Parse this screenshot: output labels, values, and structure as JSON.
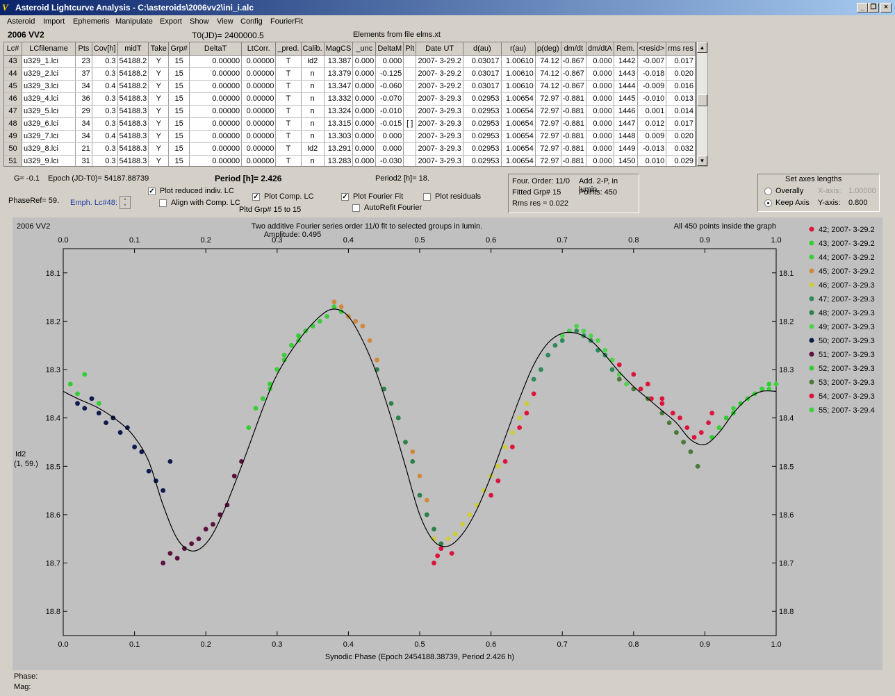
{
  "window": {
    "title": "Asteroid Lightcurve Analysis - C:\\asteroids\\2006vv2\\ini_i.alc",
    "buttons": [
      "_",
      "❐",
      "×"
    ]
  },
  "menu": [
    "Asteroid",
    "Import",
    "Ephemeris",
    "Manipulate",
    "Export",
    "Show",
    "View",
    "Config",
    "FourierFit"
  ],
  "header": {
    "asteroid_name": "2006 VV2",
    "t0": "T0(JD)= 2400000.5",
    "elements": "Elements from file elms.xt"
  },
  "table": {
    "columns": [
      "Lc#",
      "LCfilename",
      "Pts",
      "Cov[h]",
      "midT",
      "Take",
      "Grp#",
      "DeltaT",
      "LtCorr.",
      "_pred.",
      "Calib.",
      "MagCS",
      "_unc",
      "DeltaM",
      "Plt",
      "Date UT",
      "d(au)",
      "r(au)",
      "p(deg)",
      "dm/dt",
      "dm/dtA",
      "Rem.",
      "<resid>",
      "rms res"
    ],
    "rows": [
      [
        "43",
        "u329_1.lci",
        "23",
        "0.3",
        "54188.2",
        "Y",
        "15",
        "0.00000",
        "0.00000",
        "T",
        "Id2",
        "13.387",
        "0.000",
        "0.000",
        "",
        "2007- 3-29.2",
        "0.03017",
        "1.00610",
        "74.12",
        "-0.867",
        "0.000",
        "1442",
        "-0.007",
        "0.017"
      ],
      [
        "44",
        "u329_2.lci",
        "37",
        "0.3",
        "54188.2",
        "Y",
        "15",
        "0.00000",
        "0.00000",
        "T",
        "n",
        "13.379",
        "0.000",
        "-0.125",
        "",
        "2007- 3-29.2",
        "0.03017",
        "1.00610",
        "74.12",
        "-0.867",
        "0.000",
        "1443",
        "-0.018",
        "0.020"
      ],
      [
        "45",
        "u329_3.lci",
        "34",
        "0.4",
        "54188.2",
        "Y",
        "15",
        "0.00000",
        "0.00000",
        "T",
        "n",
        "13.347",
        "0.000",
        "-0.060",
        "",
        "2007- 3-29.2",
        "0.03017",
        "1.00610",
        "74.12",
        "-0.867",
        "0.000",
        "1444",
        "-0.009",
        "0.016"
      ],
      [
        "46",
        "u329_4.lci",
        "36",
        "0.3",
        "54188.3",
        "Y",
        "15",
        "0.00000",
        "0.00000",
        "T",
        "n",
        "13.332",
        "0.000",
        "-0.070",
        "",
        "2007- 3-29.3",
        "0.02953",
        "1.00654",
        "72.97",
        "-0.881",
        "0.000",
        "1445",
        "-0.010",
        "0.013"
      ],
      [
        "47",
        "u329_5.lci",
        "29",
        "0.3",
        "54188.3",
        "Y",
        "15",
        "0.00000",
        "0.00000",
        "T",
        "n",
        "13.324",
        "0.000",
        "-0.010",
        "",
        "2007- 3-29.3",
        "0.02953",
        "1.00654",
        "72.97",
        "-0.881",
        "0.000",
        "1446",
        "0.001",
        "0.014"
      ],
      [
        "48",
        "u329_6.lci",
        "34",
        "0.3",
        "54188.3",
        "Y",
        "15",
        "0.00000",
        "0.00000",
        "T",
        "n",
        "13.315",
        "0.000",
        "-0.015",
        "[ ]",
        "2007- 3-29.3",
        "0.02953",
        "1.00654",
        "72.97",
        "-0.881",
        "0.000",
        "1447",
        "0.012",
        "0.017"
      ],
      [
        "49",
        "u329_7.lci",
        "34",
        "0.4",
        "54188.3",
        "Y",
        "15",
        "0.00000",
        "0.00000",
        "T",
        "n",
        "13.303",
        "0.000",
        "0.000",
        "",
        "2007- 3-29.3",
        "0.02953",
        "1.00654",
        "72.97",
        "-0.881",
        "0.000",
        "1448",
        "0.009",
        "0.020"
      ],
      [
        "50",
        "u329_8.lci",
        "21",
        "0.3",
        "54188.3",
        "Y",
        "15",
        "0.00000",
        "0.00000",
        "T",
        "Id2",
        "13.291",
        "0.000",
        "0.000",
        "",
        "2007- 3-29.3",
        "0.02953",
        "1.00654",
        "72.97",
        "-0.881",
        "0.000",
        "1449",
        "-0.013",
        "0.032"
      ],
      [
        "51",
        "u329_9.lci",
        "31",
        "0.3",
        "54188.3",
        "Y",
        "15",
        "0.00000",
        "0.00000",
        "T",
        "n",
        "13.283",
        "0.000",
        "-0.030",
        "",
        "2007- 3-29.3",
        "0.02953",
        "1.00654",
        "72.97",
        "-0.881",
        "0.000",
        "1450",
        "0.010",
        "0.029"
      ]
    ]
  },
  "controls": {
    "g_value": "G= -0.1",
    "epoch": "Epoch (JD-T0)= 54187.88739",
    "period": "Period [h]= 2.426",
    "period2": "Period2 [h]= 18.",
    "phaseref": "PhaseRef= 59.",
    "emph": "Emph. Lc#48:",
    "plot_reduced": "Plot reduced indiv. LC",
    "align_comp": "Align with Comp. LC",
    "plot_comp": "Plot Comp. LC",
    "pltd_grp": "Pltd Grp#  15 to   15",
    "plot_fourier": "Plot Fourier Fit",
    "autorefit": "AutoRefit Fourier",
    "plot_residuals": "Plot residuals"
  },
  "fourier_info": {
    "order": "Four. Order: 11/0",
    "add": "Add. 2-P, in lumin.",
    "fitted": "Fitted Grp# 15",
    "points": "Points: 450",
    "rms": "Rms res     = 0.022"
  },
  "axes_box": {
    "title": "Set axes lengths",
    "overally": "Overally",
    "keep_axis": "Keep Axis",
    "x_axis_label": "X-axis:",
    "x_axis_value": "1.00000",
    "y_axis_label": "Y-axis:",
    "y_axis_value": "0.800"
  },
  "chart_data": {
    "type": "scatter",
    "title": "Two additive Fourier series order 11/0 fit to selected groups in lumin.",
    "subtitle": "Amplitude: 0.495",
    "object_label": "2006 VV2",
    "points_note": "All 450 points inside the graph",
    "xlabel": "Synodic Phase (Epoch 2454188.38739, Period 2.426 h)",
    "ylabel": "Id2",
    "ylabel2": "(1, 59.)",
    "xlim": [
      0,
      1
    ],
    "ylim": [
      18.05,
      18.85
    ],
    "y_inverted": true,
    "xticks": [
      "0.0",
      "0.1",
      "0.2",
      "0.3",
      "0.4",
      "0.5",
      "0.6",
      "0.7",
      "0.8",
      "0.9",
      "1.0"
    ],
    "yticks": [
      "18.1",
      "18.2",
      "18.3",
      "18.4",
      "18.5",
      "18.6",
      "18.7",
      "18.8"
    ],
    "fit_curve": {
      "x": [
        0.0,
        0.02,
        0.05,
        0.08,
        0.1,
        0.12,
        0.14,
        0.16,
        0.18,
        0.2,
        0.22,
        0.25,
        0.28,
        0.3,
        0.33,
        0.36,
        0.38,
        0.4,
        0.42,
        0.44,
        0.46,
        0.48,
        0.5,
        0.52,
        0.54,
        0.56,
        0.58,
        0.6,
        0.62,
        0.64,
        0.66,
        0.68,
        0.7,
        0.72,
        0.74,
        0.76,
        0.78,
        0.8,
        0.82,
        0.84,
        0.86,
        0.88,
        0.9,
        0.92,
        0.94,
        0.96,
        0.98,
        1.0
      ],
      "y": [
        18.345,
        18.36,
        18.38,
        18.41,
        18.44,
        18.49,
        18.58,
        18.65,
        18.675,
        18.66,
        18.61,
        18.5,
        18.38,
        18.31,
        18.24,
        18.19,
        18.175,
        18.19,
        18.24,
        18.31,
        18.4,
        18.5,
        18.6,
        18.655,
        18.665,
        18.64,
        18.59,
        18.52,
        18.44,
        18.36,
        18.29,
        18.245,
        18.225,
        18.225,
        18.24,
        18.27,
        18.305,
        18.335,
        18.36,
        18.385,
        18.41,
        18.445,
        18.455,
        18.43,
        18.39,
        18.36,
        18.345,
        18.345
      ]
    },
    "series": [
      {
        "name": "42; 2007- 3-29.2",
        "color": "#dc143c",
        "x": [
          0.81,
          0.825,
          0.84,
          0.855,
          0.865,
          0.875,
          0.885,
          0.895,
          0.905,
          0.91,
          0.52,
          0.525,
          0.53,
          0.545
        ],
        "y": [
          18.34,
          18.36,
          18.37,
          18.39,
          18.4,
          18.42,
          18.44,
          18.43,
          18.41,
          18.39,
          18.7,
          18.685,
          18.67,
          18.68
        ]
      },
      {
        "name": "43; 2007- 3-29.2",
        "color": "#32cd32",
        "x": [
          0.01,
          0.02,
          0.03,
          0.05,
          0.26,
          0.27,
          0.28,
          0.29,
          0.3,
          0.31,
          0.32,
          0.33,
          0.34,
          0.35
        ],
        "y": [
          18.33,
          18.35,
          18.31,
          18.37,
          18.42,
          18.38,
          18.36,
          18.33,
          18.3,
          18.28,
          18.25,
          18.23,
          18.22,
          18.21
        ]
      },
      {
        "name": "44; 2007- 3-29.2",
        "color": "#3ccc3c",
        "x": [
          0.3,
          0.31,
          0.32,
          0.33,
          0.34,
          0.35,
          0.36,
          0.37,
          0.38,
          0.39,
          0.4,
          0.28,
          0.29,
          0.27
        ],
        "y": [
          18.3,
          18.27,
          18.25,
          18.24,
          18.22,
          18.21,
          18.2,
          18.19,
          18.17,
          18.18,
          18.19,
          18.36,
          18.34,
          18.38
        ]
      },
      {
        "name": "45; 2007- 3-29.2",
        "color": "#d2883c",
        "x": [
          0.38,
          0.39,
          0.4,
          0.41,
          0.42,
          0.43,
          0.44,
          0.49,
          0.5,
          0.51,
          0.52
        ],
        "y": [
          18.16,
          18.17,
          18.19,
          18.2,
          18.21,
          18.24,
          18.28,
          18.47,
          18.52,
          18.57,
          18.65
        ]
      },
      {
        "name": "46; 2007- 3-29.3",
        "color": "#cccc3c",
        "x": [
          0.52,
          0.53,
          0.54,
          0.55,
          0.56,
          0.57,
          0.58,
          0.59,
          0.6,
          0.61,
          0.62,
          0.63,
          0.64,
          0.65
        ],
        "y": [
          18.65,
          18.66,
          18.65,
          18.64,
          18.62,
          18.6,
          18.58,
          18.55,
          18.52,
          18.5,
          18.46,
          18.43,
          18.4,
          18.37
        ]
      },
      {
        "name": "47; 2007- 3-29.3",
        "color": "#2e8b57",
        "x": [
          0.66,
          0.67,
          0.68,
          0.69,
          0.7,
          0.71,
          0.72,
          0.73,
          0.74,
          0.75,
          0.76,
          0.77
        ],
        "y": [
          18.32,
          18.3,
          18.27,
          18.25,
          18.24,
          18.22,
          18.22,
          18.23,
          18.24,
          18.26,
          18.27,
          18.3
        ]
      },
      {
        "name": "48; 2007- 3-29.3",
        "color": "#2d8048",
        "x": [
          0.44,
          0.45,
          0.46,
          0.47,
          0.48,
          0.49,
          0.5,
          0.51,
          0.52,
          0.53
        ],
        "y": [
          18.3,
          18.34,
          18.37,
          18.4,
          18.45,
          18.49,
          18.56,
          18.6,
          18.63,
          18.66
        ]
      },
      {
        "name": "49; 2007- 3-29.3",
        "color": "#50d250",
        "x": [
          0.7,
          0.71,
          0.72,
          0.73,
          0.74,
          0.75,
          0.76,
          0.77,
          0.78,
          0.79
        ],
        "y": [
          18.23,
          18.22,
          18.21,
          18.22,
          18.23,
          18.24,
          18.26,
          18.28,
          18.31,
          18.33
        ]
      },
      {
        "name": "50; 2007- 3-29.3",
        "color": "#0d1a4d",
        "x": [
          0.02,
          0.03,
          0.04,
          0.05,
          0.06,
          0.07,
          0.08,
          0.09,
          0.1,
          0.11,
          0.12,
          0.13,
          0.14,
          0.15
        ],
        "y": [
          18.37,
          18.38,
          18.36,
          18.39,
          18.41,
          18.4,
          18.43,
          18.42,
          18.46,
          18.47,
          18.51,
          18.53,
          18.55,
          18.49
        ]
      },
      {
        "name": "51; 2007- 3-29.3",
        "color": "#5c1040",
        "x": [
          0.14,
          0.15,
          0.16,
          0.17,
          0.18,
          0.19,
          0.2,
          0.21,
          0.22,
          0.23,
          0.24,
          0.25
        ],
        "y": [
          18.7,
          18.68,
          18.69,
          18.67,
          18.66,
          18.65,
          18.63,
          18.62,
          18.6,
          18.58,
          18.52,
          18.49
        ]
      },
      {
        "name": "52; 2007- 3-29.3",
        "color": "#32cd32",
        "x": [
          0.91,
          0.92,
          0.93,
          0.94,
          0.95,
          0.96,
          0.97,
          0.98,
          0.99
        ],
        "y": [
          18.44,
          18.42,
          18.4,
          18.39,
          18.37,
          18.36,
          18.35,
          18.34,
          18.33
        ]
      },
      {
        "name": "53; 2007- 3-29.3",
        "color": "#4a7a3a",
        "x": [
          0.78,
          0.8,
          0.82,
          0.84,
          0.85,
          0.86,
          0.87,
          0.88,
          0.89
        ],
        "y": [
          18.32,
          18.34,
          18.36,
          18.39,
          18.41,
          18.43,
          18.45,
          18.47,
          18.5
        ]
      },
      {
        "name": "54; 2007- 3-29.3",
        "color": "#dc143c",
        "x": [
          0.6,
          0.61,
          0.62,
          0.63,
          0.64,
          0.65,
          0.66,
          0.78,
          0.8,
          0.82,
          0.84
        ],
        "y": [
          18.56,
          18.53,
          18.49,
          18.46,
          18.42,
          18.39,
          18.35,
          18.29,
          18.31,
          18.33,
          18.36
        ]
      },
      {
        "name": "55; 2007- 3-29.4",
        "color": "#3cd23c",
        "x": [
          0.92,
          0.94,
          0.96,
          0.98,
          1.0,
          0.97,
          0.99
        ],
        "y": [
          18.42,
          18.38,
          18.36,
          18.34,
          18.33,
          18.35,
          18.34
        ]
      }
    ]
  },
  "status": {
    "phase": "Phase:",
    "mag": "Mag:"
  }
}
